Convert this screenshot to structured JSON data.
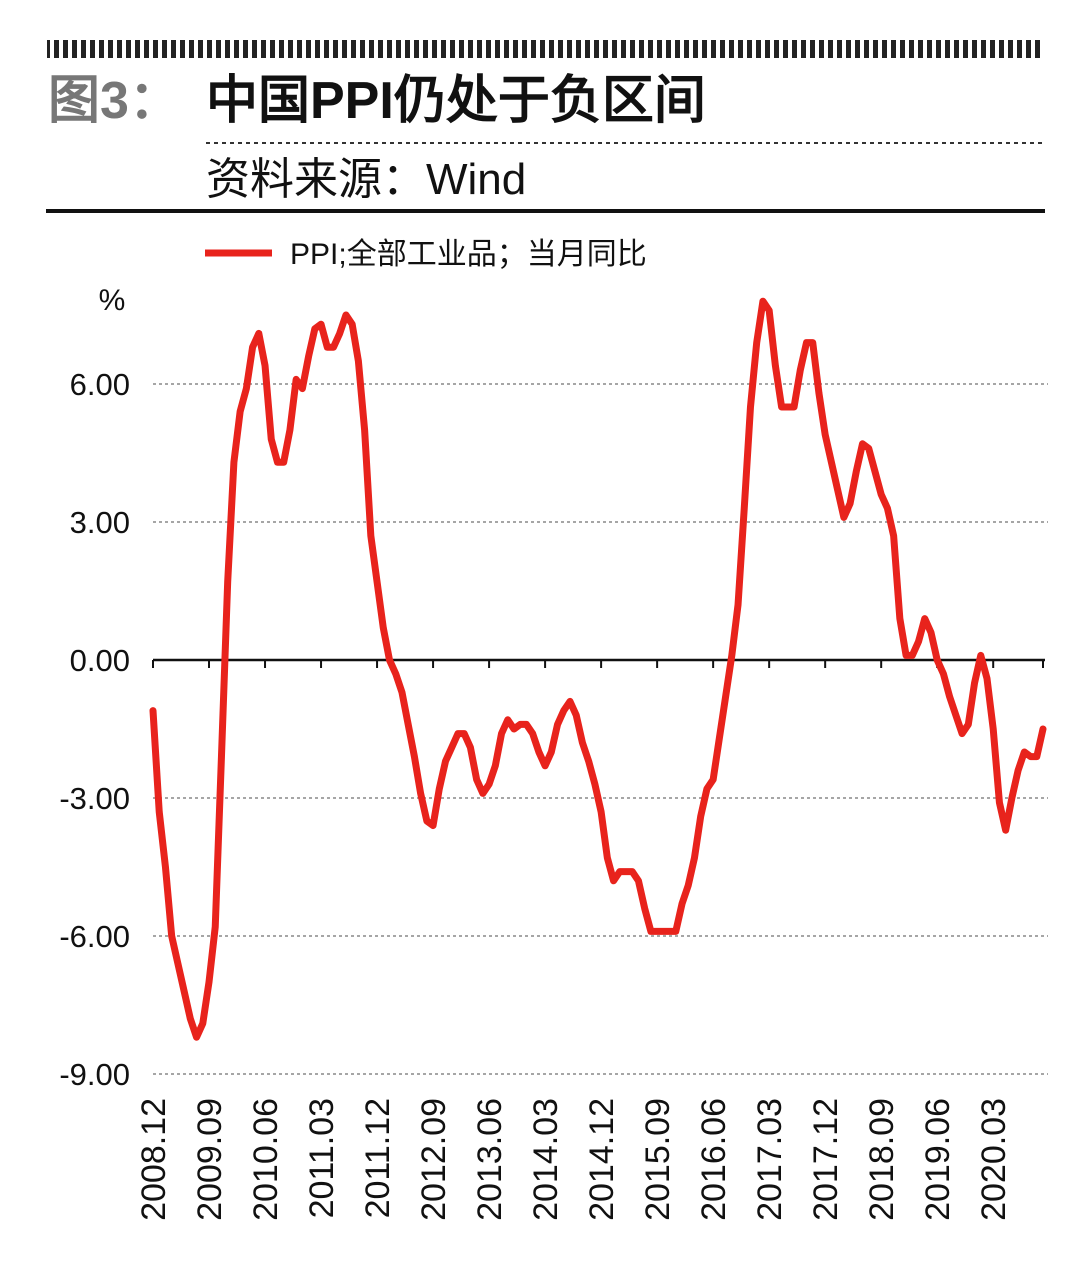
{
  "chart_data": {
    "type": "line",
    "figure_label": "图3：",
    "title": "中国PPI仍处于负区间",
    "source": "资料来源：Wind",
    "y_unit": "%",
    "categories": [
      "2008.12",
      null,
      null,
      null,
      null,
      null,
      null,
      null,
      null,
      "2009.09",
      null,
      null,
      null,
      null,
      null,
      null,
      null,
      null,
      "2010.06",
      null,
      null,
      null,
      null,
      null,
      null,
      null,
      null,
      "2011.03",
      null,
      null,
      null,
      null,
      null,
      null,
      null,
      null,
      "2011.12",
      null,
      null,
      null,
      null,
      null,
      null,
      null,
      null,
      "2012.09",
      null,
      null,
      null,
      null,
      null,
      null,
      null,
      null,
      "2013.06",
      null,
      null,
      null,
      null,
      null,
      null,
      null,
      null,
      "2014.03",
      null,
      null,
      null,
      null,
      null,
      null,
      null,
      null,
      "2014.12",
      null,
      null,
      null,
      null,
      null,
      null,
      null,
      null,
      "2015.09",
      null,
      null,
      null,
      null,
      null,
      null,
      null,
      null,
      "2016.06",
      null,
      null,
      null,
      null,
      null,
      null,
      null,
      null,
      "2017.03",
      null,
      null,
      null,
      null,
      null,
      null,
      null,
      null,
      "2017.12",
      null,
      null,
      null,
      null,
      null,
      null,
      null,
      null,
      "2018.09",
      null,
      null,
      null,
      null,
      null,
      null,
      null,
      null,
      "2019.06",
      null,
      null,
      null,
      null,
      null,
      null,
      null,
      null,
      "2020.03",
      null,
      null,
      null,
      null,
      null,
      null,
      null,
      null
    ],
    "series": [
      {
        "name": "PPI;全部工业品；当月同比",
        "color": "#e8231c",
        "values": [
          -1.1,
          -3.3,
          -4.5,
          -6.0,
          -6.6,
          -7.2,
          -7.8,
          -8.2,
          -7.9,
          -7.0,
          -5.8,
          -2.1,
          1.7,
          4.3,
          5.4,
          5.9,
          6.8,
          7.1,
          6.4,
          4.8,
          4.3,
          4.3,
          5.0,
          6.1,
          5.9,
          6.6,
          7.2,
          7.3,
          6.8,
          6.8,
          7.1,
          7.5,
          7.3,
          6.5,
          5.0,
          2.7,
          1.7,
          0.7,
          0.0,
          -0.3,
          -0.7,
          -1.4,
          -2.1,
          -2.9,
          -3.5,
          -3.6,
          -2.8,
          -2.2,
          -1.9,
          -1.6,
          -1.6,
          -1.9,
          -2.6,
          -2.9,
          -2.7,
          -2.3,
          -1.6,
          -1.3,
          -1.5,
          -1.4,
          -1.4,
          -1.6,
          -2.0,
          -2.3,
          -2.0,
          -1.4,
          -1.1,
          -0.9,
          -1.2,
          -1.8,
          -2.2,
          -2.7,
          -3.3,
          -4.3,
          -4.8,
          -4.6,
          -4.6,
          -4.6,
          -4.8,
          -5.4,
          -5.9,
          -5.9,
          -5.9,
          -5.9,
          -5.9,
          -5.3,
          -4.9,
          -4.3,
          -3.4,
          -2.8,
          -2.6,
          -1.7,
          -0.8,
          0.1,
          1.2,
          3.3,
          5.5,
          6.9,
          7.8,
          7.6,
          6.4,
          5.5,
          5.5,
          5.5,
          6.3,
          6.9,
          6.9,
          5.8,
          4.9,
          4.3,
          3.7,
          3.1,
          3.4,
          4.1,
          4.7,
          4.6,
          4.1,
          3.6,
          3.3,
          2.7,
          0.9,
          0.1,
          0.1,
          0.4,
          0.9,
          0.6,
          0.0,
          -0.3,
          -0.8,
          -1.2,
          -1.6,
          -1.4,
          -0.5,
          0.1,
          -0.4,
          -1.5,
          -3.1,
          -3.7,
          -3.0,
          -2.4,
          -2.0,
          -2.1,
          -2.1,
          -1.5
        ]
      }
    ],
    "ylim": [
      -9,
      8
    ],
    "yticks": [
      {
        "value": -9,
        "label": "-9.00"
      },
      {
        "value": -6,
        "label": "-6.00"
      },
      {
        "value": -3,
        "label": "-3.00"
      },
      {
        "value": 0,
        "label": "0.00"
      },
      {
        "value": 3,
        "label": "3.00"
      },
      {
        "value": 6,
        "label": "6.00"
      }
    ],
    "grid": true,
    "legend": "top-left"
  }
}
